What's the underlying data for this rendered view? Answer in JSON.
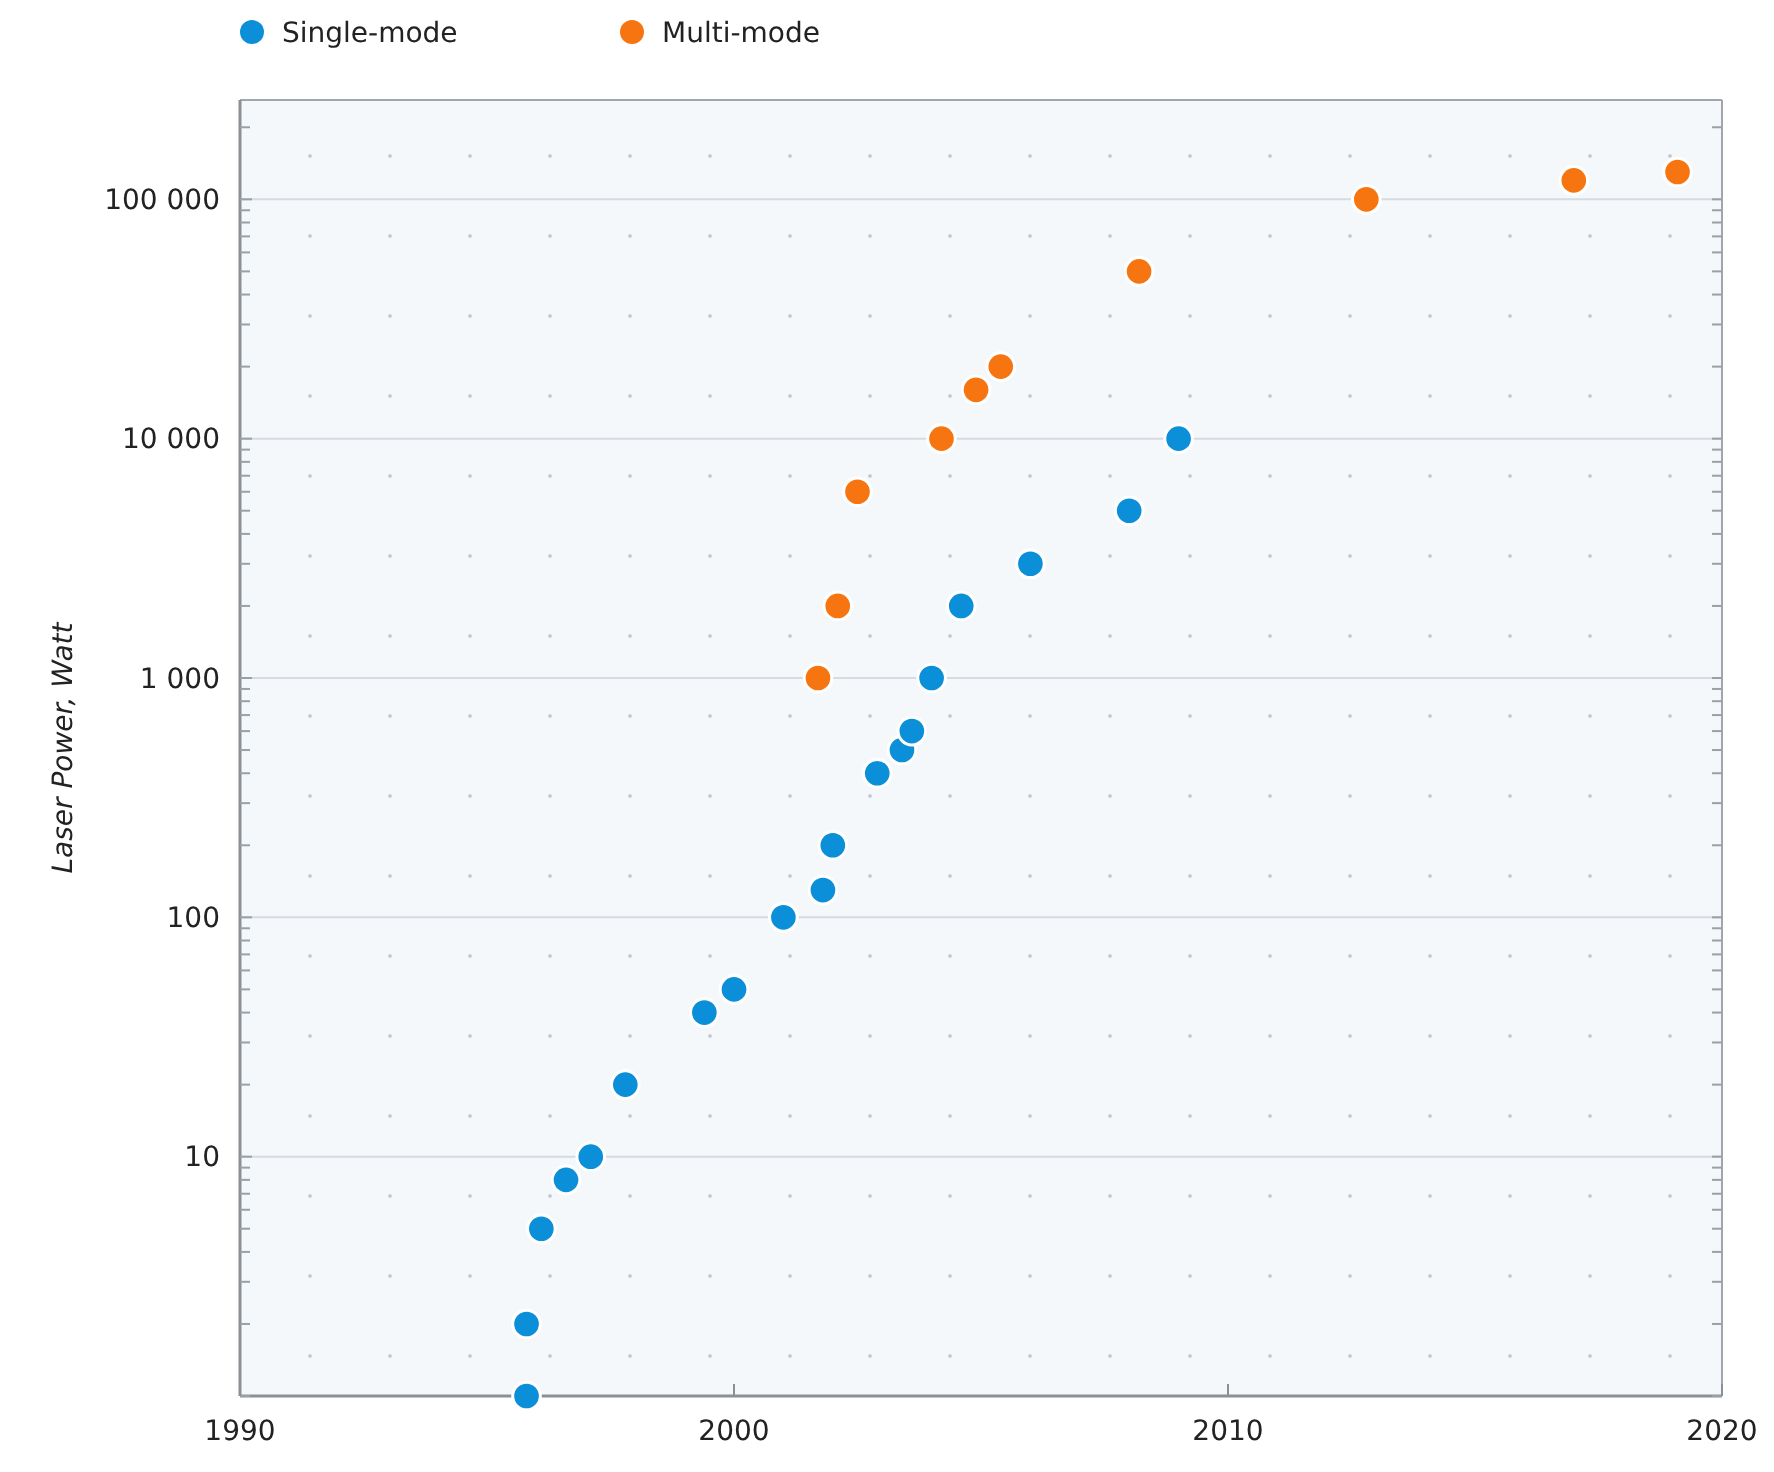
{
  "chart_data": {
    "type": "scatter",
    "ylabel": "Laser Power, Watt",
    "log": "y",
    "grid": "y",
    "legend": "top",
    "marker": "circle",
    "xlim": [
      1990,
      2020
    ],
    "xticks": [
      1990,
      2000,
      2010,
      2020
    ],
    "ylim": [
      1,
      260000
    ],
    "yticks": [
      {
        "value": 1,
        "label": null
      },
      {
        "value": 2,
        "label": null
      },
      {
        "value": 3,
        "label": null
      },
      {
        "value": 4,
        "label": null
      },
      {
        "value": 5,
        "label": null
      },
      {
        "value": 6,
        "label": null
      },
      {
        "value": 7,
        "label": null
      },
      {
        "value": 8,
        "label": null
      },
      {
        "value": 9,
        "label": null
      },
      {
        "value": 10,
        "label": "10"
      },
      {
        "value": 20,
        "label": null
      },
      {
        "value": 30,
        "label": null
      },
      {
        "value": 40,
        "label": null
      },
      {
        "value": 50,
        "label": null
      },
      {
        "value": 60,
        "label": null
      },
      {
        "value": 70,
        "label": null
      },
      {
        "value": 80,
        "label": null
      },
      {
        "value": 90,
        "label": null
      },
      {
        "value": 100,
        "label": "100"
      },
      {
        "value": 200,
        "label": null
      },
      {
        "value": 300,
        "label": null
      },
      {
        "value": 400,
        "label": null
      },
      {
        "value": 500,
        "label": null
      },
      {
        "value": 600,
        "label": null
      },
      {
        "value": 700,
        "label": null
      },
      {
        "value": 800,
        "label": null
      },
      {
        "value": 900,
        "label": null
      },
      {
        "value": 1000,
        "label": "1 000"
      },
      {
        "value": 2000,
        "label": null
      },
      {
        "value": 3000,
        "label": null
      },
      {
        "value": 4000,
        "label": null
      },
      {
        "value": 5000,
        "label": null
      },
      {
        "value": 6000,
        "label": null
      },
      {
        "value": 7000,
        "label": null
      },
      {
        "value": 8000,
        "label": null
      },
      {
        "value": 9000,
        "label": null
      },
      {
        "value": 10000,
        "label": "10 000"
      },
      {
        "value": 20000,
        "label": null
      },
      {
        "value": 30000,
        "label": null
      },
      {
        "value": 40000,
        "label": null
      },
      {
        "value": 50000,
        "label": null
      },
      {
        "value": 60000,
        "label": null
      },
      {
        "value": 70000,
        "label": null
      },
      {
        "value": 80000,
        "label": null
      },
      {
        "value": 90000,
        "label": null
      },
      {
        "value": 100000,
        "label": "100 000"
      },
      {
        "value": 200000,
        "label": null
      }
    ],
    "series": [
      {
        "name": "Single-mode",
        "color": "#0b8fd8",
        "x": [
          1995.8,
          1995.8,
          1996.1,
          1996.6,
          1997.1,
          1997.8,
          1999.4,
          2000.0,
          2001.0,
          2001.8,
          2002.0,
          2002.9,
          2003.4,
          2003.6,
          2004.0,
          2004.6,
          2006.0,
          2008.0,
          2009.0
        ],
        "values": [
          1,
          2,
          5,
          8,
          10,
          20,
          40,
          50,
          100,
          130,
          200,
          400,
          500,
          600,
          1000,
          2000,
          3000,
          5000,
          10000
        ]
      },
      {
        "name": "Multi-mode",
        "color": "#f77511",
        "x": [
          2001.7,
          2002.1,
          2002.5,
          2004.2,
          2004.9,
          2005.4,
          2008.2,
          2012.8,
          2017.0,
          2019.1
        ],
        "values": [
          1000,
          2000,
          6000,
          10000,
          16000,
          20000,
          50000,
          100000,
          120000,
          130000
        ]
      }
    ]
  }
}
